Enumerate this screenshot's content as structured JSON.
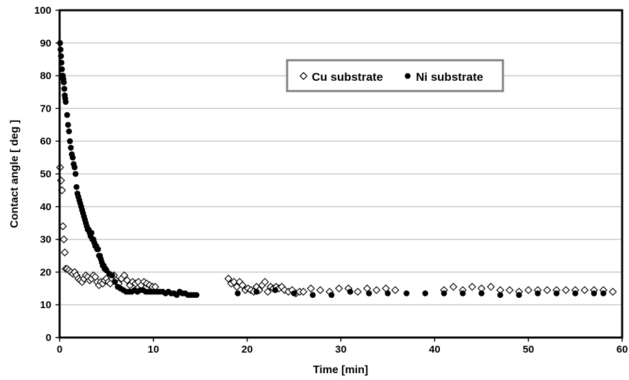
{
  "chart_data": {
    "type": "scatter",
    "title": "",
    "xlabel": "Time [min]",
    "ylabel": "Contact angle [ deg ]",
    "xlim": [
      0,
      60
    ],
    "ylim": [
      0,
      100
    ],
    "xticks": [
      0,
      10,
      20,
      30,
      40,
      50,
      60
    ],
    "yticks": [
      0,
      10,
      20,
      30,
      40,
      50,
      60,
      70,
      80,
      90,
      100
    ],
    "grid": "horizontal",
    "legend_position": "top-right",
    "series": [
      {
        "name": "Cu substrate",
        "marker": "open-diamond",
        "color": "#000000",
        "points": [
          [
            0.05,
            52
          ],
          [
            0.15,
            48
          ],
          [
            0.25,
            45
          ],
          [
            0.35,
            34
          ],
          [
            0.45,
            30
          ],
          [
            0.55,
            26
          ],
          [
            0.65,
            21
          ],
          [
            0.8,
            21
          ],
          [
            1.0,
            20.5
          ],
          [
            1.2,
            20
          ],
          [
            1.4,
            19.5
          ],
          [
            1.6,
            20
          ],
          [
            1.8,
            19
          ],
          [
            2.0,
            18
          ],
          [
            2.2,
            17.5
          ],
          [
            2.4,
            17
          ],
          [
            2.6,
            18
          ],
          [
            2.8,
            19
          ],
          [
            3.0,
            18.5
          ],
          [
            3.2,
            17.5
          ],
          [
            3.4,
            18
          ],
          [
            3.6,
            19
          ],
          [
            3.8,
            18.5
          ],
          [
            4.0,
            17
          ],
          [
            4.2,
            16
          ],
          [
            4.4,
            17
          ],
          [
            4.6,
            16.5
          ],
          [
            4.8,
            17.5
          ],
          [
            5.0,
            18
          ],
          [
            5.2,
            17
          ],
          [
            5.4,
            16.5
          ],
          [
            5.6,
            18
          ],
          [
            5.8,
            19
          ],
          [
            6.0,
            17.5
          ],
          [
            6.3,
            16.5
          ],
          [
            6.6,
            18
          ],
          [
            6.9,
            19
          ],
          [
            7.2,
            17.5
          ],
          [
            7.5,
            16
          ],
          [
            7.8,
            17
          ],
          [
            8.1,
            16.5
          ],
          [
            8.4,
            17
          ],
          [
            8.7,
            16
          ],
          [
            9.0,
            17
          ],
          [
            9.3,
            16.5
          ],
          [
            9.6,
            16
          ],
          [
            9.9,
            15.5
          ],
          [
            10.2,
            15.5
          ],
          [
            18.0,
            18
          ],
          [
            18.3,
            16.5
          ],
          [
            18.6,
            17
          ],
          [
            18.9,
            15.5
          ],
          [
            19.2,
            17
          ],
          [
            19.5,
            16
          ],
          [
            19.8,
            14.5
          ],
          [
            20.1,
            15
          ],
          [
            20.4,
            14.5
          ],
          [
            20.7,
            14
          ],
          [
            21.0,
            15.5
          ],
          [
            21.3,
            14.5
          ],
          [
            21.6,
            16
          ],
          [
            21.9,
            17
          ],
          [
            22.2,
            14
          ],
          [
            22.5,
            15.5
          ],
          [
            22.8,
            15
          ],
          [
            23.1,
            15.5
          ],
          [
            23.4,
            15
          ],
          [
            23.7,
            15.5
          ],
          [
            24.0,
            14.5
          ],
          [
            24.4,
            14
          ],
          [
            24.8,
            14.5
          ],
          [
            25.2,
            13.5
          ],
          [
            25.6,
            14
          ],
          [
            26.0,
            14
          ],
          [
            26.8,
            15
          ],
          [
            27.8,
            14.5
          ],
          [
            28.8,
            14
          ],
          [
            29.8,
            15
          ],
          [
            30.8,
            15
          ],
          [
            31.8,
            14
          ],
          [
            32.8,
            15
          ],
          [
            33.8,
            14.5
          ],
          [
            34.8,
            15
          ],
          [
            35.8,
            14.5
          ],
          [
            41.0,
            14.5
          ],
          [
            42.0,
            15.5
          ],
          [
            43.0,
            14.5
          ],
          [
            44.0,
            15.5
          ],
          [
            45.0,
            15
          ],
          [
            46.0,
            15.5
          ],
          [
            47.0,
            14.5
          ],
          [
            48.0,
            14.5
          ],
          [
            49.0,
            14
          ],
          [
            50.0,
            14.5
          ],
          [
            51.0,
            14.5
          ],
          [
            52.0,
            14.5
          ],
          [
            53.0,
            14.5
          ],
          [
            54.0,
            14.5
          ],
          [
            55.0,
            14.5
          ],
          [
            56.0,
            14.5
          ],
          [
            57.0,
            14.5
          ],
          [
            58.0,
            14.5
          ],
          [
            59.0,
            14
          ]
        ]
      },
      {
        "name": "Ni substrate",
        "marker": "filled-circle",
        "color": "#000000",
        "points": [
          [
            0.05,
            90
          ],
          [
            0.1,
            88
          ],
          [
            0.15,
            86
          ],
          [
            0.2,
            84
          ],
          [
            0.25,
            82
          ],
          [
            0.3,
            80
          ],
          [
            0.35,
            80
          ],
          [
            0.4,
            79
          ],
          [
            0.45,
            78
          ],
          [
            0.5,
            76
          ],
          [
            0.55,
            74
          ],
          [
            0.6,
            73
          ],
          [
            0.65,
            72
          ],
          [
            0.8,
            68
          ],
          [
            0.9,
            65
          ],
          [
            1.0,
            63
          ],
          [
            1.1,
            60
          ],
          [
            1.2,
            58
          ],
          [
            1.3,
            56
          ],
          [
            1.4,
            55
          ],
          [
            1.5,
            53
          ],
          [
            1.6,
            52
          ],
          [
            1.7,
            50
          ],
          [
            1.8,
            46
          ],
          [
            1.9,
            44
          ],
          [
            2.0,
            43
          ],
          [
            2.1,
            42
          ],
          [
            2.2,
            41
          ],
          [
            2.3,
            40
          ],
          [
            2.4,
            39
          ],
          [
            2.5,
            38
          ],
          [
            2.6,
            37
          ],
          [
            2.7,
            36
          ],
          [
            2.8,
            35
          ],
          [
            2.9,
            34
          ],
          [
            3.0,
            33
          ],
          [
            3.1,
            33
          ],
          [
            3.2,
            32
          ],
          [
            3.3,
            31
          ],
          [
            3.4,
            32
          ],
          [
            3.5,
            30
          ],
          [
            3.6,
            30
          ],
          [
            3.7,
            29
          ],
          [
            3.8,
            28
          ],
          [
            3.9,
            28
          ],
          [
            4.0,
            27
          ],
          [
            4.1,
            27
          ],
          [
            4.2,
            25
          ],
          [
            4.3,
            25
          ],
          [
            4.4,
            24
          ],
          [
            4.5,
            23
          ],
          [
            4.6,
            22
          ],
          [
            4.7,
            22
          ],
          [
            4.8,
            21
          ],
          [
            4.9,
            21
          ],
          [
            5.0,
            20.5
          ],
          [
            5.3,
            19.5
          ],
          [
            5.6,
            19
          ],
          [
            5.9,
            17
          ],
          [
            6.2,
            15.5
          ],
          [
            6.5,
            15
          ],
          [
            6.8,
            14.5
          ],
          [
            7.1,
            14
          ],
          [
            7.4,
            14
          ],
          [
            7.7,
            14
          ],
          [
            8.0,
            14.5
          ],
          [
            8.3,
            14
          ],
          [
            8.6,
            14.5
          ],
          [
            8.9,
            14.5
          ],
          [
            9.2,
            14
          ],
          [
            9.5,
            14
          ],
          [
            9.8,
            14
          ],
          [
            10.1,
            14
          ],
          [
            10.4,
            14
          ],
          [
            10.7,
            14
          ],
          [
            11.0,
            14
          ],
          [
            11.3,
            13.5
          ],
          [
            11.6,
            14
          ],
          [
            11.9,
            13.5
          ],
          [
            12.2,
            13.5
          ],
          [
            12.5,
            13
          ],
          [
            12.8,
            14
          ],
          [
            13.1,
            13.5
          ],
          [
            13.4,
            13.5
          ],
          [
            13.7,
            13
          ],
          [
            14.0,
            13
          ],
          [
            14.3,
            13
          ],
          [
            14.6,
            13
          ],
          [
            19.0,
            13.5
          ],
          [
            21.0,
            14
          ],
          [
            23.0,
            14.5
          ],
          [
            25.0,
            13.5
          ],
          [
            27.0,
            13
          ],
          [
            29.0,
            13
          ],
          [
            31.0,
            14
          ],
          [
            33.0,
            13.5
          ],
          [
            35.0,
            13.5
          ],
          [
            37.0,
            13.5
          ],
          [
            39.0,
            13.5
          ],
          [
            41.0,
            13.5
          ],
          [
            43.0,
            13.5
          ],
          [
            45.0,
            13.5
          ],
          [
            47.0,
            13
          ],
          [
            49.0,
            13
          ],
          [
            51.0,
            13.5
          ],
          [
            53.0,
            13.5
          ],
          [
            55.0,
            13.5
          ],
          [
            57.0,
            13.5
          ],
          [
            58.0,
            13.5
          ]
        ]
      }
    ]
  }
}
